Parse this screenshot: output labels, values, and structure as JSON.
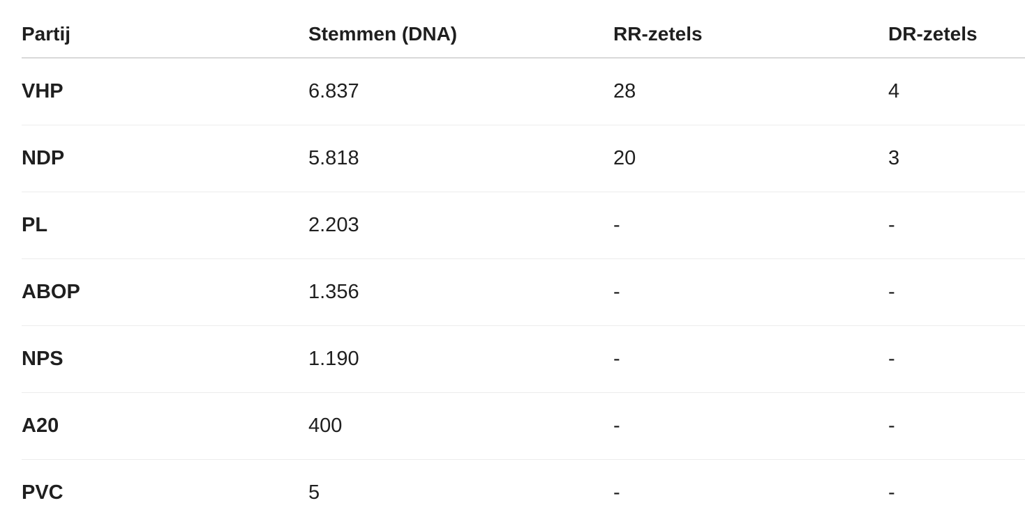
{
  "table": {
    "columns": [
      "Partij",
      "Stemmen (DNA)",
      "RR-zetels",
      "DR-zetels"
    ],
    "rows": [
      {
        "party": "VHP",
        "votes": "6.837",
        "rr": "28",
        "dr": "4"
      },
      {
        "party": "NDP",
        "votes": "5.818",
        "rr": "20",
        "dr": "3"
      },
      {
        "party": "PL",
        "votes": "2.203",
        "rr": "-",
        "dr": "-"
      },
      {
        "party": "ABOP",
        "votes": "1.356",
        "rr": "-",
        "dr": "-"
      },
      {
        "party": "NPS",
        "votes": "1.190",
        "rr": "-",
        "dr": "-"
      },
      {
        "party": "A20",
        "votes": "400",
        "rr": "-",
        "dr": "-"
      },
      {
        "party": "PVC",
        "votes": "5",
        "rr": "-",
        "dr": "-"
      }
    ]
  }
}
